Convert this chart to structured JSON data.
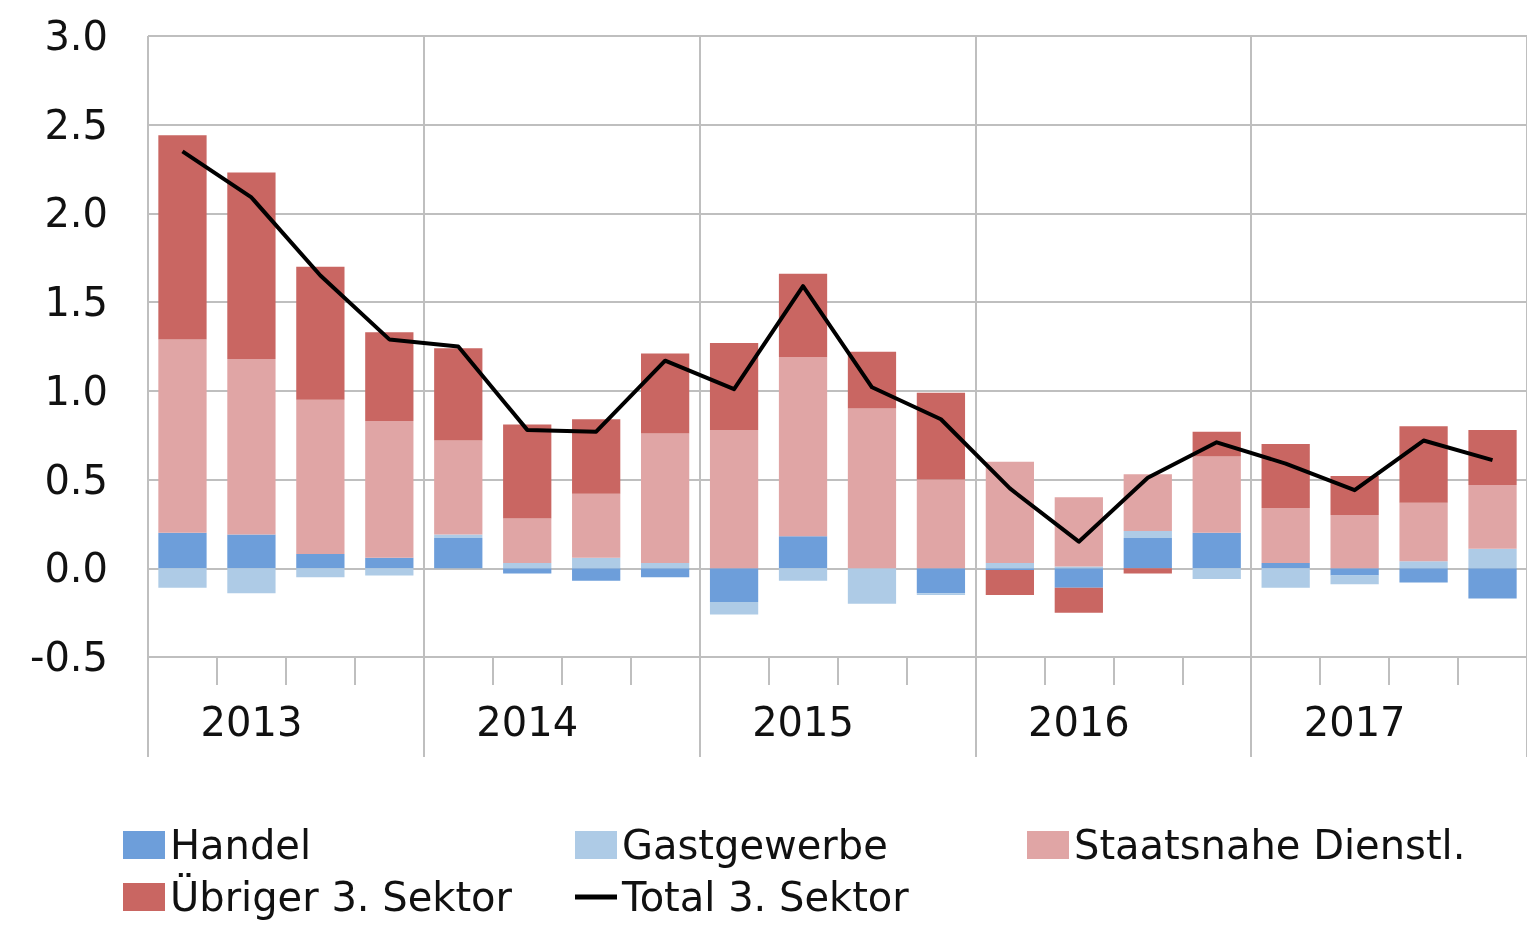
{
  "chart_data": {
    "type": "bar",
    "stacked": true,
    "categories": [
      null,
      "2013",
      null,
      null,
      null,
      "2014",
      null,
      null,
      null,
      "2015",
      null,
      null,
      null,
      "2016",
      null,
      null,
      null,
      "2017",
      null,
      null
    ],
    "series": [
      {
        "name": "Handel",
        "color": "#6d9eda",
        "values": [
          0.2,
          0.19,
          0.08,
          0.06,
          0.17,
          -0.03,
          -0.07,
          -0.05,
          -0.19,
          0.18,
          0.0,
          -0.14,
          -0.01,
          -0.11,
          0.17,
          0.2,
          0.03,
          -0.04,
          -0.08,
          -0.17
        ]
      },
      {
        "name": "Gastgewerbe",
        "color": "#aecbe6",
        "values": [
          -0.11,
          -0.14,
          -0.05,
          -0.04,
          0.02,
          0.03,
          0.06,
          0.03,
          -0.07,
          -0.07,
          -0.2,
          -0.01,
          0.03,
          0.01,
          0.04,
          -0.06,
          -0.11,
          -0.05,
          0.04,
          0.11
        ]
      },
      {
        "name": "Staatsnahe Dienstl.",
        "color": "#e0a5a5",
        "values": [
          1.09,
          0.99,
          0.87,
          0.77,
          0.53,
          0.25,
          0.36,
          0.73,
          0.78,
          1.01,
          0.9,
          0.5,
          0.57,
          0.39,
          0.32,
          0.43,
          0.31,
          0.3,
          0.33,
          0.36
        ]
      },
      {
        "name": "Übriger 3. Sektor",
        "color": "#c96662",
        "values": [
          1.15,
          1.05,
          0.75,
          0.5,
          0.52,
          0.53,
          0.42,
          0.45,
          0.49,
          0.47,
          0.32,
          0.49,
          -0.14,
          -0.14,
          -0.03,
          0.14,
          0.36,
          0.22,
          0.43,
          0.31
        ]
      },
      {
        "name": "Total 3. Sektor",
        "type": "line",
        "color": "#000000",
        "values": [
          2.35,
          2.09,
          1.65,
          1.29,
          1.25,
          0.78,
          0.77,
          1.17,
          1.01,
          1.59,
          1.02,
          0.84,
          0.45,
          0.15,
          0.51,
          0.71,
          0.59,
          0.44,
          0.72,
          0.61
        ]
      }
    ],
    "ylim": [
      -0.5,
      3.0
    ],
    "yticks": [
      {
        "value": -0.5,
        "label": "-0.5"
      },
      {
        "value": 0,
        "label": "0.0"
      },
      {
        "value": 0.5,
        "label": "0.5"
      },
      {
        "value": 1,
        "label": "1.0"
      },
      {
        "value": 1.5,
        "label": "1.5"
      },
      {
        "value": 2,
        "label": "2.0"
      },
      {
        "value": 2.5,
        "label": "2.5"
      },
      {
        "value": 3,
        "label": "3.0"
      }
    ],
    "grid": true,
    "legend": "bottom",
    "marker": "none"
  }
}
